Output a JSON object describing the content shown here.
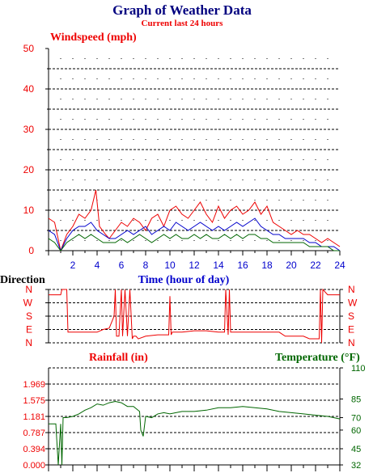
{
  "header": {
    "title": "Graph of Weather Data",
    "subtitle": "Current last 24 hours"
  },
  "colors": {
    "title": "#00007f",
    "red": "#ee0000",
    "blue": "#0000cc",
    "green": "#006600",
    "grid": "#000000"
  },
  "chart_data": [
    {
      "id": "wind",
      "type": "line",
      "title": "Windspeed (mph)",
      "xlabel": "Time (hour of day)",
      "xlim": [
        0,
        24
      ],
      "xticks": [
        "2",
        "4",
        "6",
        "8",
        "10",
        "12",
        "14",
        "16",
        "18",
        "20",
        "22",
        "24"
      ],
      "ylim": [
        0,
        50
      ],
      "yticks": [
        "0",
        "10",
        "20",
        "30",
        "40",
        "50"
      ],
      "grid": true,
      "series": [
        {
          "color_key": "red",
          "x": [
            0,
            0.5,
            1,
            1.5,
            2,
            2.5,
            3,
            3.5,
            3.9,
            4.2,
            4.7,
            5,
            5.5,
            6,
            6.5,
            7,
            7.5,
            8,
            8.5,
            9,
            9.5,
            10,
            10.5,
            11,
            11.5,
            12,
            12.5,
            13,
            13.5,
            14,
            14.5,
            15,
            15.5,
            16,
            16.5,
            17,
            17.5,
            18,
            18.5,
            19,
            19.5,
            20,
            20.5,
            21,
            21.5,
            22,
            22.5,
            23,
            23.5,
            24
          ],
          "y": [
            8,
            7,
            0,
            4,
            6,
            9,
            8,
            10,
            15,
            6,
            4,
            3,
            5,
            7,
            6,
            8,
            7,
            5,
            8,
            9,
            6,
            10,
            11,
            9,
            8,
            10,
            12,
            9,
            7,
            11,
            8,
            10,
            11,
            9,
            10,
            12,
            9,
            11,
            7,
            6,
            5,
            4,
            5,
            4,
            4,
            3,
            2,
            3,
            2,
            1
          ]
        },
        {
          "color_key": "blue",
          "x": [
            0,
            0.5,
            1,
            1.5,
            2,
            2.5,
            3,
            3.5,
            4,
            4.5,
            5,
            5.5,
            6,
            6.5,
            7,
            7.5,
            8,
            8.5,
            9,
            9.5,
            10,
            10.5,
            11,
            11.5,
            12,
            12.5,
            13,
            13.5,
            14,
            14.5,
            15,
            15.5,
            16,
            16.5,
            17,
            17.5,
            18,
            18.5,
            19,
            19.5,
            20,
            20.5,
            21,
            21.5,
            22,
            22.5,
            23,
            23.5,
            24
          ],
          "y": [
            5,
            4,
            0,
            3,
            5,
            6,
            6,
            7,
            5,
            4,
            3,
            3,
            4,
            5,
            4,
            5,
            6,
            4,
            5,
            6,
            5,
            7,
            6,
            5,
            6,
            7,
            6,
            5,
            6,
            5,
            6,
            7,
            6,
            7,
            8,
            6,
            5,
            4,
            4,
            3,
            3,
            3,
            3,
            2,
            2,
            1,
            1,
            1,
            0
          ]
        },
        {
          "color_key": "green",
          "x": [
            0,
            0.5,
            1,
            1.5,
            2,
            2.5,
            3,
            3.5,
            4,
            4.5,
            5,
            5.5,
            6,
            6.5,
            7,
            7.5,
            8,
            8.5,
            9,
            9.5,
            10,
            10.5,
            11,
            11.5,
            12,
            12.5,
            13,
            13.5,
            14,
            14.5,
            15,
            15.5,
            16,
            16.5,
            17,
            17.5,
            18,
            18.5,
            19,
            19.5,
            20,
            20.5,
            21,
            21.5,
            22,
            22.5,
            23,
            23.5,
            24
          ],
          "y": [
            3,
            2,
            0,
            2,
            3,
            4,
            3,
            4,
            3,
            2,
            2,
            2,
            3,
            2,
            3,
            4,
            3,
            2,
            3,
            4,
            3,
            4,
            3,
            3,
            4,
            3,
            4,
            3,
            3,
            4,
            3,
            4,
            3,
            4,
            4,
            3,
            3,
            2,
            2,
            2,
            2,
            2,
            2,
            1,
            1,
            1,
            1,
            0,
            0
          ]
        }
      ]
    },
    {
      "id": "direction",
      "type": "line",
      "ylabel": "Direction",
      "yticks": [
        "N",
        "W",
        "S",
        "E",
        "N"
      ],
      "xlim": [
        0,
        24
      ],
      "grid": true,
      "series": [
        {
          "color_key": "red",
          "x": [
            0,
            1,
            1.1,
            1.5,
            1.6,
            2,
            3,
            4,
            4.5,
            5,
            5.4,
            5.5,
            5.6,
            5.8,
            6,
            6.1,
            6.3,
            6.5,
            6.7,
            6.9,
            7,
            7.2,
            7.4,
            8,
            9,
            9.9,
            10,
            10.1,
            10.2,
            11,
            12,
            13,
            14,
            14.5,
            14.6,
            14.8,
            14.9,
            15,
            15.1,
            15.5,
            16,
            17,
            18,
            19,
            19.5,
            20,
            21,
            21.5,
            22,
            22.3,
            22.4,
            22.5,
            22.6,
            23,
            23.5,
            24
          ],
          "y": [
            3.6,
            3.6,
            4,
            4,
            0.8,
            0.8,
            0.8,
            0.8,
            1,
            1.1,
            2,
            4,
            0.5,
            0.5,
            4,
            0.5,
            4,
            0.5,
            4,
            0.3,
            0.5,
            0.5,
            0.3,
            0.5,
            0.6,
            0.6,
            3.5,
            0.6,
            0.8,
            0.8,
            0.9,
            0.9,
            0.8,
            0.8,
            4,
            0.6,
            4,
            0.8,
            0.8,
            0.8,
            0.8,
            0.8,
            0.8,
            0.8,
            0.5,
            0.5,
            0.5,
            0.3,
            0.3,
            0.3,
            4,
            0,
            4,
            3.6,
            3.6,
            3.6
          ]
        }
      ]
    },
    {
      "id": "rain_temp",
      "type": "line",
      "left_label": "Rainfall (in)",
      "right_label": "Temperature (°F)",
      "xlim": [
        0,
        24
      ],
      "ylim_left": [
        0,
        2.362
      ],
      "yticks_left": [
        "0.000",
        "0.394",
        "0.787",
        "1.181",
        "1.575",
        "1.969"
      ],
      "ylim_right": [
        32,
        110
      ],
      "yticks_right": [
        "32",
        "45",
        "60",
        "70",
        "85",
        "110"
      ],
      "grid": true,
      "series": [
        {
          "name": "Temperature",
          "axis": "right",
          "color_key": "green",
          "x": [
            0,
            0.6,
            0.8,
            1,
            1.1,
            1.2,
            1.5,
            2,
            2.5,
            3,
            3.5,
            4,
            4.5,
            5,
            5.5,
            6,
            6.5,
            7,
            7.5,
            7.6,
            7.8,
            8,
            8.5,
            9,
            9.5,
            10,
            11,
            12,
            13,
            14,
            15,
            16,
            17,
            18,
            19,
            20,
            21,
            22,
            23,
            24
          ],
          "y": [
            65,
            65,
            32,
            65,
            32,
            70,
            70,
            71,
            73,
            76,
            78,
            81,
            80,
            82,
            83,
            82,
            79,
            79,
            75,
            60,
            55,
            71,
            70,
            73,
            74,
            73,
            75,
            75,
            76,
            78,
            78,
            79,
            78,
            77,
            75,
            74,
            73,
            72,
            71,
            69
          ]
        }
      ]
    }
  ]
}
